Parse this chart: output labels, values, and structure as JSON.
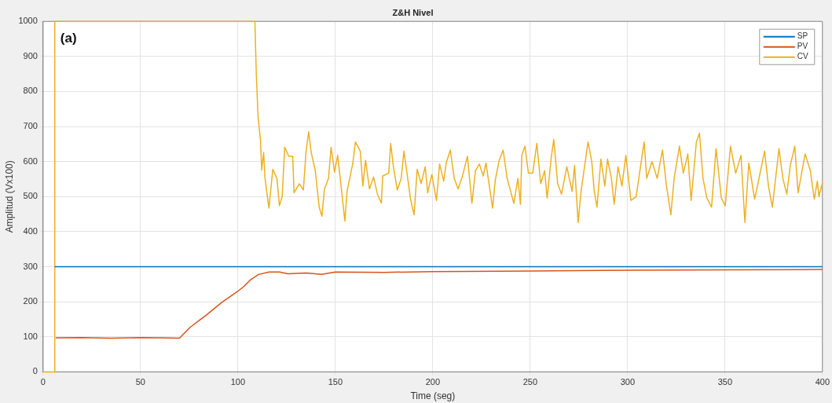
{
  "chart_data": {
    "type": "line",
    "title": "Z&H Nivel",
    "xlabel": "Time (seg)",
    "ylabel": "Amplitud (Vx100)",
    "annotations": [
      "(a)"
    ],
    "xlim": [
      0,
      400
    ],
    "xticks": [
      0,
      50,
      100,
      150,
      200,
      250,
      300,
      350,
      400
    ],
    "ylim": [
      0,
      1000
    ],
    "yticks": [
      0,
      100,
      200,
      300,
      400,
      500,
      600,
      700,
      800,
      900,
      1000
    ],
    "grid": true,
    "legend": "top right",
    "marker": "none",
    "line_style": "solid",
    "series": [
      {
        "name": "SP",
        "color": "#0072bd",
        "x": [
          6,
          400
        ],
        "values": [
          300,
          300
        ]
      },
      {
        "name": "PV",
        "color": "#d95319",
        "x": [
          6.5,
          20,
          35,
          50,
          60,
          70,
          75.4,
          83.5,
          91.6,
          99.7,
          103.1,
          106.5,
          110.6,
          116,
          121.4,
          125.5,
          135,
          143,
          150,
          175,
          200,
          250,
          300,
          350,
          400
        ],
        "values": [
          97,
          98,
          96,
          98,
          97,
          96,
          127,
          161,
          198,
          229,
          244,
          263,
          278,
          285,
          285,
          280,
          282,
          278,
          285,
          284,
          286,
          288,
          290,
          291,
          292
        ]
      },
      {
        "name": "CV",
        "color": "#edb120",
        "x": [
          0,
          6,
          6,
          108.7,
          109.4,
          110.3,
          111.6,
          112.2,
          113.2,
          113.9,
          115.9,
          117.9,
          120,
          121.3,
          122.7,
          124,
          126.1,
          128.1,
          128.8,
          131.5,
          133.6,
          134.9,
          136.3,
          137.6,
          139.7,
          141.7,
          143.1,
          144.4,
          146.5,
          147.8,
          149.6,
          151.2,
          153.3,
          154.9,
          156,
          159,
          160.3,
          162.8,
          164.1,
          165.5,
          167.5,
          169.6,
          171.6,
          173.6,
          174.3,
          177.4,
          178.4,
          179.7,
          181.8,
          183.8,
          185.2,
          186.6,
          188.6,
          190.4,
          192,
          194,
          196.1,
          197.4,
          199.5,
          201.9,
          203.5,
          205.6,
          206.9,
          209,
          211,
          213,
          215.1,
          217.8,
          220.1,
          221.9,
          223.9,
          225.9,
          227.3,
          230.7,
          232.1,
          234.1,
          236.1,
          238.2,
          241.6,
          243.7,
          245,
          245.7,
          247.3,
          249.1,
          251.3,
          253.4,
          255.4,
          257.4,
          258.7,
          260.8,
          262.1,
          264.1,
          266.1,
          268.8,
          271.5,
          272.8,
          274.6,
          276.2,
          279.7,
          281.6,
          282.9,
          284.3,
          286.3,
          288.3,
          289.7,
          291.7,
          293.1,
          295.1,
          297.1,
          299.1,
          301.7,
          304.4,
          306.5,
          308.5,
          309.8,
          312.5,
          315.2,
          317.9,
          319.9,
          322.2,
          323.9,
          326.6,
          328.6,
          330.9,
          332.6,
          335.3,
          336.9,
          338.7,
          340.7,
          343.1,
          345.4,
          348.1,
          350.1,
          352.8,
          355.5,
          358.2,
          360.2,
          362.2,
          365.2,
          366.9,
          370.3,
          372.3,
          374.3,
          377.7,
          379.7,
          381.7,
          383.5,
          385.8,
          387.5,
          391.1,
          393.8,
          395.8,
          397.4,
          398.2,
          400
        ],
        "values": [
          0,
          0,
          1000,
          1000,
          855,
          730,
          660,
          576,
          626,
          552,
          467,
          578,
          552,
          474,
          500,
          641,
          615,
          615,
          511,
          537,
          519,
          626,
          685,
          626,
          574,
          470,
          444,
          522,
          552,
          641,
          570,
          618,
          511,
          430,
          515,
          596,
          656,
          630,
          530,
          604,
          522,
          556,
          507,
          481,
          559,
          567,
          652,
          589,
          519,
          552,
          630,
          574,
          493,
          448,
          578,
          537,
          585,
          511,
          563,
          489,
          593,
          544,
          596,
          633,
          552,
          522,
          556,
          615,
          481,
          574,
          593,
          559,
          596,
          467,
          548,
          604,
          633,
          552,
          481,
          552,
          478,
          618,
          644,
          567,
          567,
          652,
          537,
          574,
          496,
          611,
          663,
          537,
          507,
          585,
          515,
          589,
          426,
          519,
          656,
          600,
          515,
          470,
          607,
          530,
          607,
          552,
          478,
          585,
          530,
          618,
          489,
          500,
          581,
          656,
          552,
          600,
          552,
          633,
          533,
          448,
          552,
          644,
          567,
          622,
          489,
          656,
          681,
          552,
          496,
          470,
          637,
          496,
          474,
          644,
          567,
          618,
          426,
          596,
          493,
          537,
          630,
          530,
          470,
          637,
          552,
          507,
          589,
          644,
          511,
          622,
          574,
          493,
          544,
          500,
          540
        ]
      }
    ]
  }
}
